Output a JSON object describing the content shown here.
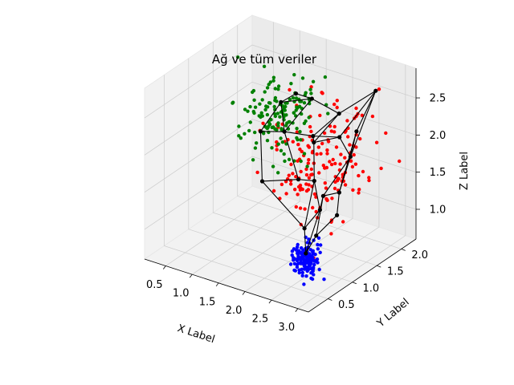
{
  "chart_data": {
    "type": "scatter",
    "projection": "3d",
    "title": "Ağ ve tüm veriler",
    "xlabel": "X Label",
    "ylabel": "Y Label",
    "zlabel": "Z Label",
    "xlim": [
      0.1,
      3.2
    ],
    "ylim": [
      0.1,
      2.3
    ],
    "zlim": [
      0.6,
      2.9
    ],
    "xticks": [
      "0.5",
      "1.0",
      "1.5",
      "2.0",
      "2.5",
      "3.0"
    ],
    "yticks": [
      "0.5",
      "1.0",
      "1.5",
      "2.0"
    ],
    "zticks": [
      "1.0",
      "1.5",
      "2.0",
      "2.5"
    ],
    "grid": true,
    "colors": {
      "cluster_red": "#ff0000",
      "cluster_green": "#008000",
      "cluster_blue": "#0000ff",
      "network": "#000000"
    },
    "clusters": [
      {
        "color": "#ff0000",
        "count": 170,
        "center": [
          2.3,
          1.4,
          1.8
        ],
        "spread": [
          0.35,
          0.45,
          0.38
        ]
      },
      {
        "color": "#008000",
        "count": 150,
        "center": [
          1.2,
          1.7,
          2.1
        ],
        "spread": [
          0.3,
          0.3,
          0.25
        ]
      },
      {
        "color": "#0000ff",
        "count": 140,
        "center": [
          2.6,
          0.7,
          0.9
        ],
        "spread": [
          0.1,
          0.1,
          0.1
        ]
      }
    ],
    "network_nodes": [
      [
        1.2,
        1.7,
        2.25
      ],
      [
        1.6,
        1.9,
        2.3
      ],
      [
        2.3,
        1.7,
        2.35
      ],
      [
        2.9,
        1.8,
        2.75
      ],
      [
        3.0,
        1.3,
        2.45
      ],
      [
        2.95,
        1.0,
        1.75
      ],
      [
        3.0,
        0.9,
        1.5
      ],
      [
        2.7,
        0.8,
        1.2
      ],
      [
        2.55,
        0.75,
        0.95
      ],
      [
        2.4,
        1.2,
        1.3
      ],
      [
        2.2,
        1.3,
        1.6
      ],
      [
        1.9,
        1.3,
        1.55
      ],
      [
        1.4,
        1.1,
        1.5
      ],
      [
        1.0,
        1.5,
        1.9
      ],
      [
        1.45,
        1.5,
        2.0
      ],
      [
        1.9,
        1.6,
        2.0
      ],
      [
        2.4,
        1.6,
        2.1
      ],
      [
        2.7,
        1.5,
        1.95
      ],
      [
        2.2,
        1.1,
        1.05
      ],
      [
        2.6,
        1.05,
        1.6
      ],
      [
        1.3,
        1.9,
        2.3
      ],
      [
        2.1,
        1.4,
        2.05
      ]
    ],
    "network_edges": [
      [
        0,
        1
      ],
      [
        1,
        2
      ],
      [
        2,
        3
      ],
      [
        3,
        4
      ],
      [
        4,
        5
      ],
      [
        5,
        6
      ],
      [
        6,
        7
      ],
      [
        7,
        8
      ],
      [
        8,
        9
      ],
      [
        9,
        10
      ],
      [
        10,
        11
      ],
      [
        11,
        12
      ],
      [
        12,
        13
      ],
      [
        13,
        0
      ],
      [
        0,
        14
      ],
      [
        14,
        15
      ],
      [
        15,
        16
      ],
      [
        16,
        17
      ],
      [
        17,
        4
      ],
      [
        17,
        5
      ],
      [
        10,
        18
      ],
      [
        18,
        9
      ],
      [
        9,
        19
      ],
      [
        19,
        5
      ],
      [
        19,
        17
      ],
      [
        16,
        3
      ],
      [
        2,
        15
      ],
      [
        11,
        14
      ],
      [
        12,
        18
      ],
      [
        3,
        17
      ],
      [
        20,
        0
      ],
      [
        20,
        1
      ],
      [
        21,
        15
      ],
      [
        21,
        10
      ],
      [
        21,
        2
      ],
      [
        13,
        14
      ],
      [
        8,
        18
      ],
      [
        7,
        19
      ],
      [
        16,
        21
      ],
      [
        1,
        14
      ]
    ]
  }
}
